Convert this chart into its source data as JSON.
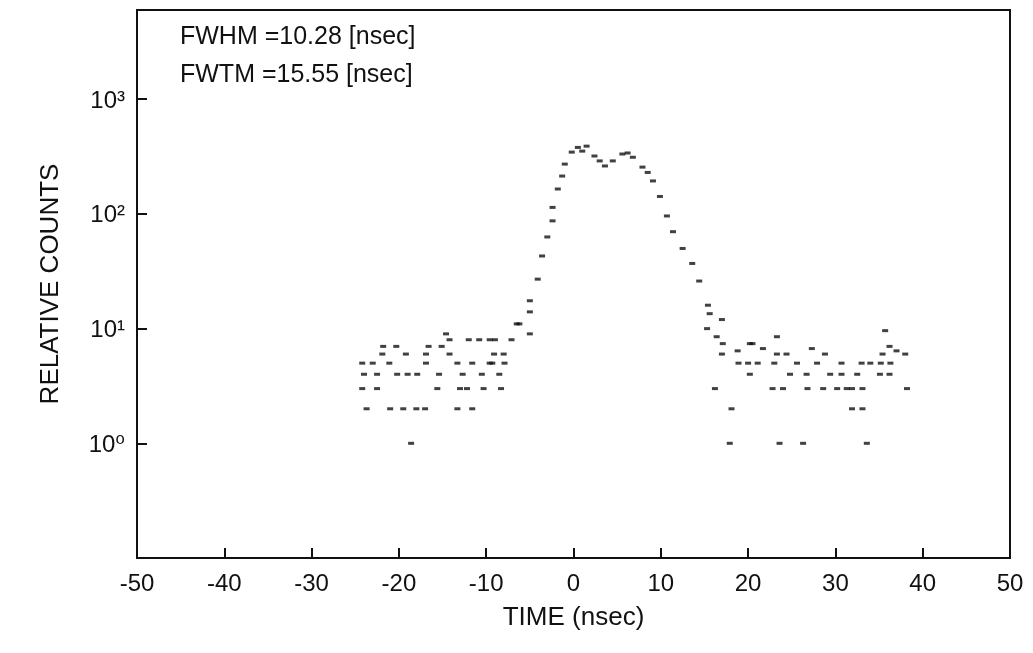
{
  "chart_data": {
    "type": "scatter",
    "xlabel": "TIME (nsec)",
    "ylabel": "RELATIVE COUNTS",
    "annotations": [
      "FWHM =10.28 [nsec]",
      "FWTM =15.55 [nsec]"
    ],
    "xlim": [
      -50,
      50
    ],
    "xticks": [
      -50,
      -40,
      -30,
      -20,
      -10,
      0,
      10,
      20,
      30,
      40,
      50
    ],
    "ylim": [
      0.1,
      6000
    ],
    "yticks": [
      {
        "value": 1,
        "label": "10⁰"
      },
      {
        "value": 10,
        "label": "10¹"
      },
      {
        "value": 100,
        "label": "10²"
      },
      {
        "value": 1000,
        "label": "10³"
      }
    ],
    "log": "y",
    "grid": false,
    "marker": "square",
    "color": "#111111",
    "x": [
      -24.2,
      -24.2,
      -24,
      -23.7,
      -23,
      -22.5,
      -22.5,
      -21.9,
      -21.8,
      -21.1,
      -21,
      -20.3,
      -20.2,
      -19.5,
      -19.2,
      -19,
      -18.6,
      -18,
      -17.9,
      -17,
      -16.9,
      -16.9,
      -16.6,
      -15.6,
      -15.4,
      -15.1,
      -14.6,
      -14.2,
      -14.2,
      -13.3,
      -13.3,
      -13,
      -12.7,
      -12.2,
      -12,
      -11.6,
      -11.6,
      -10.8,
      -10.5,
      -10.3,
      -9.6,
      -9.6,
      -9.3,
      -9.1,
      -9,
      -8.5,
      -8.3,
      -8,
      -7.9,
      -7.1,
      -6.5,
      -6.2,
      -5,
      -5,
      -5,
      -4.1,
      -3.6,
      -3,
      -2.4,
      -2.4,
      -1.8,
      -1.3,
      -1,
      -0.2,
      0.5,
      1,
      1.5,
      2.4,
      3,
      3.6,
      4.5,
      5.6,
      6.2,
      6.8,
      7.9,
      8.5,
      9.1,
      9.9,
      10.7,
      11.4,
      12.5,
      13.6,
      14.4,
      15.4,
      15.6,
      15.3,
      16.2,
      16.4,
      17,
      17,
      17.1,
      17.9,
      18.1,
      18.8,
      18.9,
      20,
      20.2,
      20.2,
      20.5,
      21.1,
      21.7,
      22.8,
      23,
      23.3,
      23.3,
      23.6,
      24,
      24.4,
      24.8,
      25.6,
      26.3,
      26.7,
      26.8,
      27.3,
      27.9,
      28.6,
      28.8,
      29.4,
      30.2,
      30.7,
      30.7,
      31.3,
      31.9,
      31.9,
      32.5,
      33,
      33.1,
      33.1,
      33.6,
      34,
      35.1,
      35.2,
      35.4,
      35.7,
      36.2,
      36.2,
      36.3,
      37,
      38,
      38.2
    ],
    "values": [
      3,
      5,
      4,
      2,
      5,
      3,
      4,
      6,
      7,
      5,
      2,
      7,
      4,
      2,
      6,
      4,
      1,
      2,
      4,
      2,
      5,
      6,
      7,
      3,
      4,
      7,
      9,
      6,
      8,
      2,
      5,
      3,
      4,
      3,
      8,
      2,
      5,
      8,
      4,
      3,
      5,
      8,
      5,
      6,
      8,
      4,
      3,
      6,
      5,
      8,
      11,
      11,
      9,
      14,
      17.5,
      27,
      43,
      63,
      87,
      114,
      165,
      214,
      272,
      346,
      380,
      353,
      390,
      320,
      290,
      262,
      290,
      333,
      340,
      312,
      256,
      230,
      194,
      142,
      96,
      70,
      50,
      37,
      26,
      16,
      13.5,
      10,
      3,
      8.5,
      12,
      6,
      7.4,
      1,
      2,
      6.4,
      5,
      5,
      4,
      7.4,
      7.4,
      5,
      6.7,
      3,
      5,
      6,
      8.5,
      1,
      3,
      6,
      4,
      5,
      1,
      4,
      3,
      6.7,
      5,
      3,
      6,
      4,
      3,
      4,
      5,
      3,
      2,
      3,
      4,
      5,
      2,
      3,
      1,
      5,
      4,
      5,
      6,
      9.6,
      4,
      7,
      5,
      6.4,
      6,
      3
    ]
  }
}
